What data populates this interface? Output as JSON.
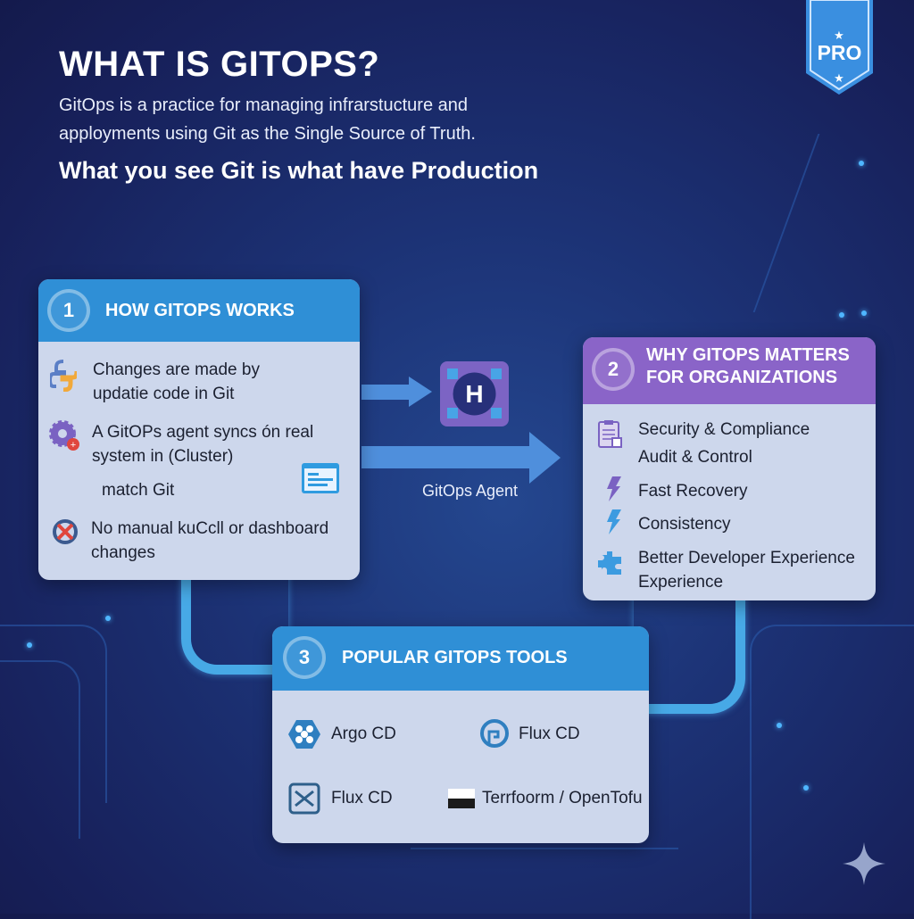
{
  "header": {
    "title": "WHAT IS GITOPS?",
    "description_lines": [
      "GitOps is a practice for managing infrarstucture and",
      "apployments using Git as the Single Source of Truth."
    ],
    "tagline": "What you see Git is what have Production",
    "badge": "PRO"
  },
  "cards": {
    "how": {
      "number": "1",
      "title": "HOW GITOPS WORKS",
      "color": "#2f8fd6",
      "items": [
        {
          "icon": "python-icon",
          "lines": [
            "Changes are made by",
            "updatie code in Git"
          ]
        },
        {
          "icon": "gear-agent-icon",
          "lines": [
            "A GitOPs agent syncs ón real",
            "system in (Cluster)"
          ]
        },
        {
          "icon": "window-icon",
          "lines": [
            "match Git"
          ]
        },
        {
          "icon": "no-manual-icon",
          "lines": [
            "No manual kuCcll or dashboard",
            "changes"
          ]
        }
      ]
    },
    "why": {
      "number": "2",
      "title_lines": [
        "WHY GITOPS MATTERS",
        "FOR ORGANIZATIONS"
      ],
      "color": "#8a64c8",
      "items": [
        {
          "icon": "clipboard-icon",
          "lines": [
            "Security & Compliance",
            "Audit & Control"
          ]
        },
        {
          "icon": "lightning-purple-icon",
          "lines": [
            "Fast Recovery"
          ]
        },
        {
          "icon": "lightning-blue-icon",
          "lines": [
            "Consistency"
          ]
        },
        {
          "icon": "puzzle-icon",
          "lines": [
            "Better Developer Experience",
            "Experience"
          ]
        }
      ]
    },
    "tools": {
      "number": "3",
      "title": "POPULAR GITOPS TOOLS",
      "color": "#2f8fd6",
      "items": [
        {
          "icon": "argo-cd-icon",
          "label": "Argo CD"
        },
        {
          "icon": "flux-cd-chat-icon",
          "label": "Flux CD"
        },
        {
          "icon": "flux-cd-icon",
          "label": "Flux CD"
        },
        {
          "icon": "terraform-icon",
          "label": "Terrfoorm / OpenTofu"
        }
      ]
    }
  },
  "flow": {
    "agent_label": "GitOps Agent"
  }
}
